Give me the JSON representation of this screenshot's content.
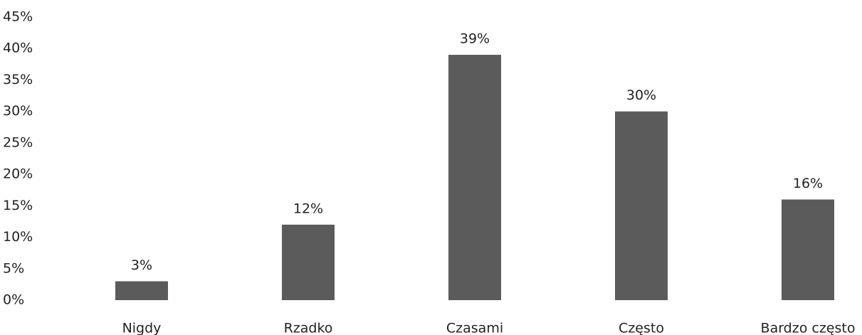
{
  "chart_data": {
    "type": "bar",
    "categories": [
      "Nigdy",
      "Rzadko",
      "Czasami",
      "Często",
      "Bardzo często"
    ],
    "values": [
      3,
      12,
      39,
      30,
      16
    ],
    "value_labels": [
      "3%",
      "12%",
      "39%",
      "30%",
      "16%"
    ],
    "color": "#5b5b5b",
    "ylim": [
      0,
      45
    ],
    "yticks": [
      {
        "value": 0,
        "label": "0%"
      },
      {
        "value": 5,
        "label": "5%"
      },
      {
        "value": 10,
        "label": "10%"
      },
      {
        "value": 15,
        "label": "15%"
      },
      {
        "value": 20,
        "label": "20%"
      },
      {
        "value": 25,
        "label": "25%"
      },
      {
        "value": 30,
        "label": "30%"
      },
      {
        "value": 35,
        "label": "35%"
      },
      {
        "value": 40,
        "label": "40%"
      },
      {
        "value": 45,
        "label": "45%"
      }
    ],
    "grid": false
  }
}
